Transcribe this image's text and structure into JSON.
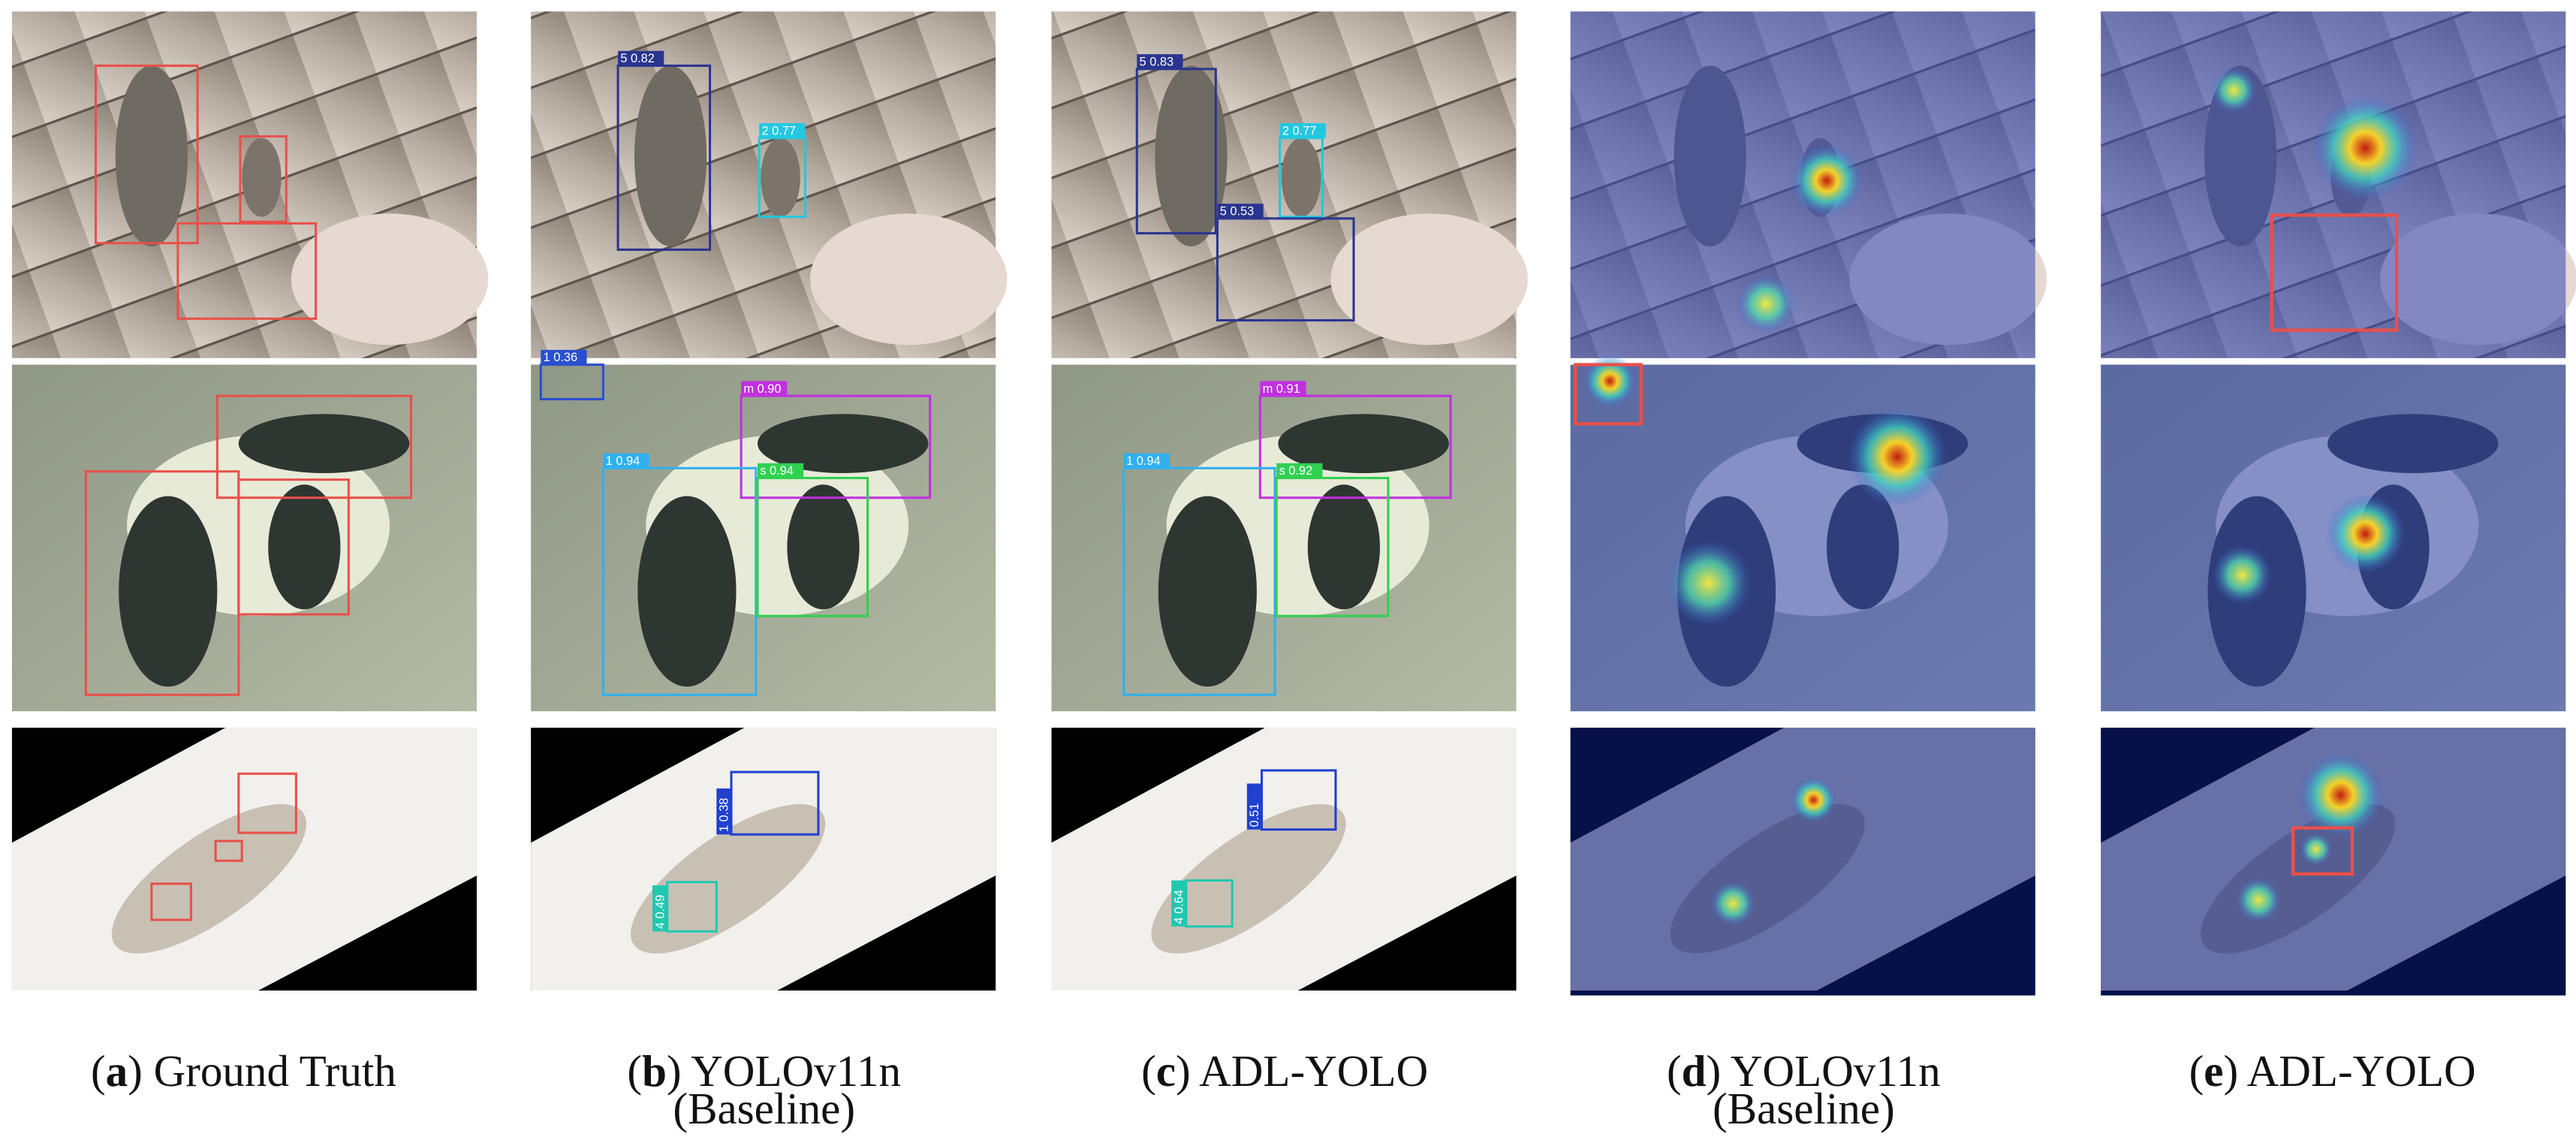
{
  "captions": [
    {
      "parts": [
        "(",
        "a",
        ") Ground Truth"
      ]
    },
    {
      "parts": [
        "(",
        "b",
        ") YOLOv11n"
      ],
      "line2": "(Baseline)"
    },
    {
      "parts": [
        "(",
        "c",
        ") ADL-YOLO"
      ]
    },
    {
      "parts": [
        "(",
        "d",
        ") YOLOv11n"
      ],
      "line2": "(Baseline)"
    },
    {
      "parts": [
        "(",
        "e",
        ") ADL-YOLO"
      ]
    }
  ],
  "detection_labels": [
    "5 0.82",
    "2 0.77",
    "5 0.83",
    "2 0.77",
    "5 0.53",
    "1 0.36",
    "m 0.90",
    "1 0.94",
    "s 0.94",
    "m 0.91",
    "1 0.94",
    "s 0.92",
    "1 0.38",
    "4 0.49",
    "0.51",
    "4 0.64"
  ]
}
